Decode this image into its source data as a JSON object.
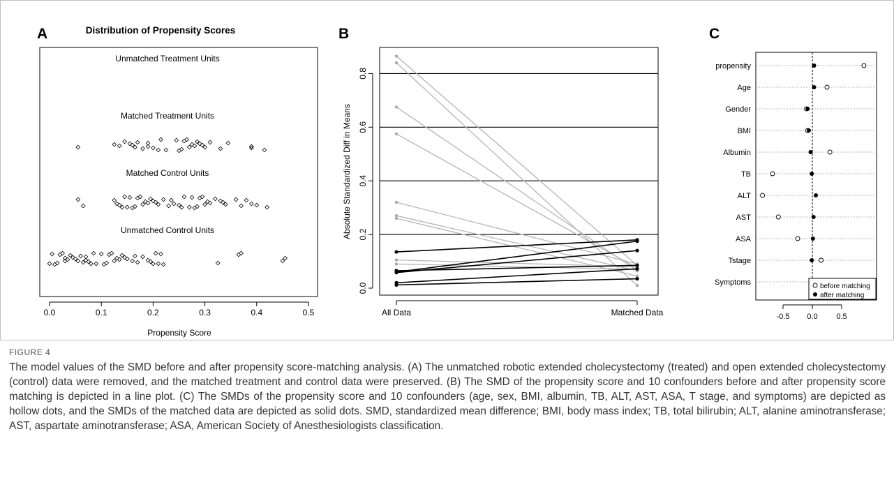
{
  "panel_labels": {
    "a": "A",
    "b": "B",
    "c": "C"
  },
  "chart_data": [
    {
      "panel": "A",
      "type": "scatter",
      "title": "Distribution of Propensity Scores",
      "xlabel": "Propensity Score",
      "xlim": [
        0,
        0.5
      ],
      "xticks": [
        "0.0",
        "0.1",
        "0.2",
        "0.3",
        "0.4",
        "0.5"
      ],
      "groups": [
        {
          "name": "Unmatched Treatment Units",
          "values": []
        },
        {
          "name": "Matched Treatment Units",
          "values": [
            0.055,
            0.125,
            0.135,
            0.145,
            0.155,
            0.16,
            0.165,
            0.17,
            0.18,
            0.19,
            0.19,
            0.2,
            0.21,
            0.215,
            0.225,
            0.245,
            0.25,
            0.255,
            0.26,
            0.265,
            0.27,
            0.275,
            0.28,
            0.285,
            0.29,
            0.295,
            0.3,
            0.31,
            0.33,
            0.345,
            0.39,
            0.39,
            0.415
          ]
        },
        {
          "name": "Matched Control Units",
          "values": [
            0.055,
            0.065,
            0.125,
            0.13,
            0.135,
            0.14,
            0.145,
            0.15,
            0.155,
            0.16,
            0.165,
            0.17,
            0.175,
            0.18,
            0.185,
            0.19,
            0.195,
            0.2,
            0.205,
            0.21,
            0.22,
            0.23,
            0.235,
            0.24,
            0.25,
            0.255,
            0.26,
            0.27,
            0.275,
            0.28,
            0.285,
            0.29,
            0.295,
            0.3,
            0.305,
            0.31,
            0.32,
            0.33,
            0.335,
            0.34,
            0.36,
            0.37,
            0.38,
            0.39,
            0.4,
            0.42
          ]
        },
        {
          "name": "Unmatched Control Units",
          "values": [
            0.0,
            0.005,
            0.01,
            0.015,
            0.02,
            0.025,
            0.03,
            0.03,
            0.035,
            0.04,
            0.045,
            0.05,
            0.055,
            0.06,
            0.065,
            0.07,
            0.07,
            0.075,
            0.08,
            0.085,
            0.09,
            0.1,
            0.105,
            0.11,
            0.115,
            0.12,
            0.125,
            0.13,
            0.135,
            0.14,
            0.145,
            0.15,
            0.16,
            0.165,
            0.17,
            0.18,
            0.19,
            0.195,
            0.2,
            0.205,
            0.21,
            0.215,
            0.22,
            0.325,
            0.365,
            0.37,
            0.45,
            0.455
          ]
        }
      ]
    },
    {
      "panel": "B",
      "type": "line",
      "ylabel": "Absolute Standardized Diff in Means",
      "categories": [
        "All Data",
        "Matched Data"
      ],
      "ylim": [
        0,
        0.9
      ],
      "yticks": [
        "0.0",
        "0.2",
        "0.4",
        "0.6",
        "0.8"
      ],
      "grid_lines_y": [
        0.2,
        0.4,
        0.6,
        0.8
      ],
      "segments": [
        {
          "values": [
            0.865,
            0.085
          ],
          "color": "#b5b5b5"
        },
        {
          "values": [
            0.84,
            0.01
          ],
          "color": "#b5b5b5"
        },
        {
          "values": [
            0.675,
            0.065
          ],
          "color": "#b5b5b5"
        },
        {
          "values": [
            0.575,
            0.075
          ],
          "color": "#b5b5b5"
        },
        {
          "values": [
            0.32,
            0.09
          ],
          "color": "#b5b5b5"
        },
        {
          "values": [
            0.27,
            0.065
          ],
          "color": "#b5b5b5"
        },
        {
          "values": [
            0.26,
            0.045
          ],
          "color": "#b5b5b5"
        },
        {
          "values": [
            0.105,
            0.08
          ],
          "color": "#b5b5b5"
        },
        {
          "values": [
            0.09,
            0.07
          ],
          "color": "#b5b5b5"
        },
        {
          "values": [
            0.135,
            0.18
          ],
          "color": "#000000"
        },
        {
          "values": [
            0.06,
            0.175
          ],
          "color": "#000000"
        },
        {
          "values": [
            0.058,
            0.14
          ],
          "color": "#000000"
        },
        {
          "values": [
            0.065,
            0.085
          ],
          "color": "#000000"
        },
        {
          "values": [
            0.02,
            0.072
          ],
          "color": "#000000"
        },
        {
          "values": [
            0.012,
            0.035
          ],
          "color": "#000000"
        }
      ]
    },
    {
      "panel": "C",
      "type": "scatter",
      "categories": [
        "propensity",
        "Age",
        "Gender",
        "BMI",
        "Albumin",
        "TB",
        "ALT",
        "AST",
        "ASA",
        "Tstage",
        "Symptoms"
      ],
      "xlim": [
        -0.95,
        1.0
      ],
      "xticks": [
        "-0.5",
        "0.0",
        "0.5"
      ],
      "series": [
        {
          "name": "before matching",
          "values": [
            0.88,
            0.25,
            -0.1,
            -0.08,
            0.3,
            -0.68,
            -0.85,
            -0.58,
            -0.25,
            0.15,
            null
          ]
        },
        {
          "name": "after matching",
          "values": [
            0.03,
            0.03,
            -0.08,
            -0.06,
            -0.03,
            -0.01,
            0.06,
            0.02,
            0.01,
            -0.01,
            null
          ]
        }
      ],
      "legend_position": "bottom-right"
    }
  ],
  "caption": {
    "label": "FIGURE 4",
    "text": "The model values of the SMD before and after propensity score-matching analysis. (A) The unmatched robotic extended cholecystectomy (treated) and open extended cholecystectomy (control) data were removed, and the matched treatment and control data were preserved. (B) The SMD of the propensity score and 10 confounders before and after propensity score matching is depicted in a line plot. (C) The SMDs of the propensity score and 10 confounders (age, sex, BMI, albumin, TB, ALT, AST, ASA, T stage, and symptoms) are depicted as hollow dots, and the SMDs of the matched data are depicted as solid dots. SMD, standardized mean difference; BMI, body mass index; TB, total bilirubin; ALT, alanine aminotransferase; AST, aspartate aminotransferase; ASA, American Society of Anesthesiologists classification."
  }
}
